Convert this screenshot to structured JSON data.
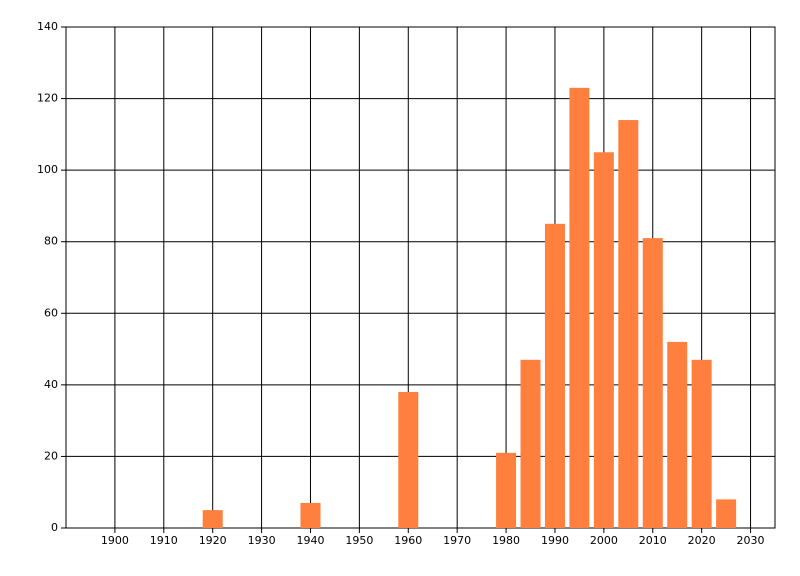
{
  "chart_data": {
    "type": "bar",
    "color": "#ff7f3f",
    "grid": true,
    "x": [
      1920,
      1940,
      1960,
      1980,
      1985,
      1990,
      1995,
      2000,
      2005,
      2010,
      2015,
      2020,
      2025
    ],
    "values": [
      5,
      7,
      38,
      21,
      47,
      85,
      123,
      105,
      114,
      81,
      52,
      47,
      8
    ],
    "xlim": [
      1890,
      2035
    ],
    "xticks": [
      1900,
      1910,
      1920,
      1930,
      1940,
      1950,
      1960,
      1970,
      1980,
      1990,
      2000,
      2010,
      2020,
      2030
    ],
    "ylim": [
      0,
      140
    ],
    "yticks": [
      0,
      20,
      40,
      60,
      80,
      100,
      120,
      140
    ]
  }
}
